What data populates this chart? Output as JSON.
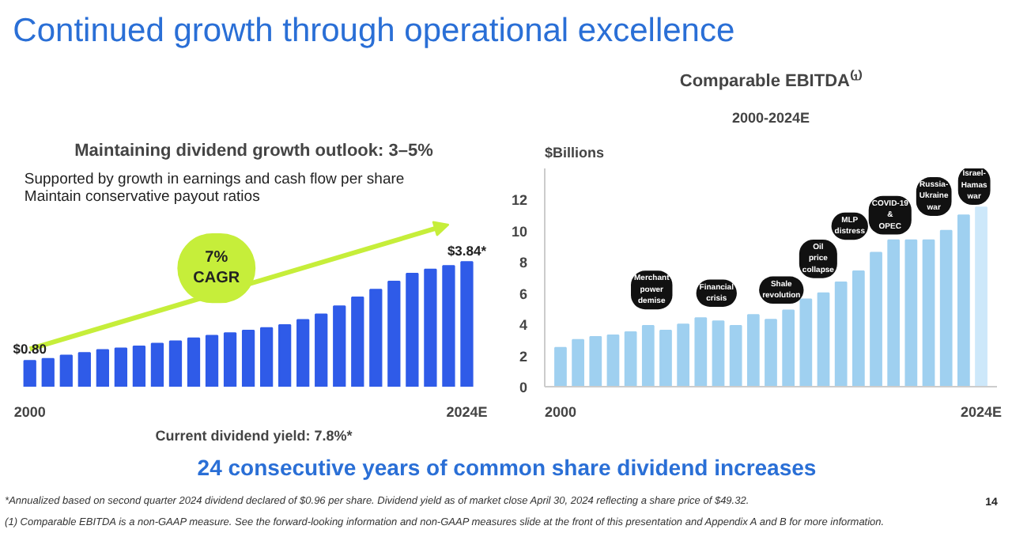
{
  "chart_data": [
    {
      "type": "bar",
      "title": "Continued growth through operational excellence",
      "subtitle": "Maintaining dividend growth outlook: 3–5%",
      "categories": [
        "2000",
        null,
        null,
        null,
        null,
        null,
        null,
        null,
        null,
        null,
        null,
        null,
        null,
        null,
        null,
        null,
        null,
        null,
        null,
        null,
        null,
        null,
        null,
        null,
        "2024E"
      ],
      "values": [
        0.8,
        0.86,
        0.96,
        1.04,
        1.13,
        1.18,
        1.24,
        1.33,
        1.4,
        1.49,
        1.57,
        1.65,
        1.73,
        1.81,
        1.9,
        2.06,
        2.23,
        2.48,
        2.75,
        2.99,
        3.24,
        3.48,
        3.61,
        3.72,
        3.84
      ],
      "value_labels": [
        "$0.80",
        null,
        null,
        null,
        null,
        null,
        null,
        null,
        null,
        null,
        null,
        null,
        null,
        null,
        null,
        null,
        null,
        null,
        null,
        null,
        null,
        null,
        null,
        null,
        "$3.84*"
      ],
      "color": "#2f5be8",
      "grid": false,
      "annotations": [
        "Supported by growth in earnings and cash flow per share",
        "Maintain conservative payout ratios",
        "7%\nCAGR",
        "Current dividend yield: 7.8%*",
        "24 consecutive years of common share dividend increases",
        "*Annualized based on second quarter 2024 dividend declared of $0.96 per share. Dividend yield as of market close April 30, 2024 reflecting a share price of $49.32.",
        "14"
      ]
    },
    {
      "type": "bar",
      "title": "Comparable EBITDA⁽¹⁾",
      "subtitle": "2000-2024E",
      "ylabel": "$Billions",
      "categories": [
        "2000",
        null,
        null,
        null,
        null,
        null,
        null,
        null,
        null,
        null,
        null,
        null,
        null,
        null,
        null,
        null,
        null,
        null,
        null,
        null,
        null,
        null,
        null,
        null,
        "2024E"
      ],
      "values": [
        2.5,
        3.0,
        3.2,
        3.3,
        3.5,
        3.9,
        3.6,
        4.0,
        4.4,
        4.2,
        3.9,
        4.6,
        4.3,
        4.9,
        5.6,
        6.0,
        6.7,
        7.4,
        8.6,
        9.4,
        9.4,
        9.4,
        10.0,
        11.0,
        11.5
      ],
      "colors": [
        "#9fd0f0",
        "#9fd0f0",
        "#9fd0f0",
        "#9fd0f0",
        "#9fd0f0",
        "#9fd0f0",
        "#9fd0f0",
        "#9fd0f0",
        "#9fd0f0",
        "#9fd0f0",
        "#9fd0f0",
        "#9fd0f0",
        "#9fd0f0",
        "#9fd0f0",
        "#9fd0f0",
        "#9fd0f0",
        "#9fd0f0",
        "#9fd0f0",
        "#9fd0f0",
        "#9fd0f0",
        "#9fd0f0",
        "#9fd0f0",
        "#9fd0f0",
        "#9fd0f0",
        "#cde8fa"
      ],
      "ylim": [
        0,
        14
      ],
      "yticks": [
        0,
        2,
        4,
        6,
        8,
        10,
        12
      ],
      "grid": false,
      "annotations": [
        "Merchant power demise",
        "Financial crisis",
        "Shale revolution",
        "Oil price collapse",
        "MLP distress",
        "COVID-19 & OPEC",
        "Russia-Ukraine war",
        "Israel-Hamas war",
        "(1) Comparable EBITDA is a non-GAAP measure. See the forward-looking information and non-GAAP measures slide at the front of this presentation and Appendix A and B for more information."
      ]
    }
  ]
}
